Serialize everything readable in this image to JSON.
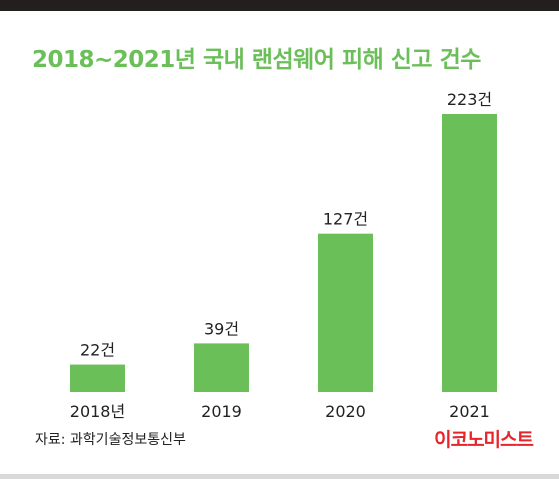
{
  "colors": {
    "accent": "#6bbf59",
    "brand": "#e8242b",
    "top_band": "#231f1e"
  },
  "chart_data": {
    "type": "bar",
    "title": "2018~2021년 국내 랜섬웨어 피해 신고 건수",
    "categories": [
      "2018년",
      "2019",
      "2020",
      "2021"
    ],
    "values": [
      22,
      39,
      127,
      223
    ],
    "data_labels": [
      "22건",
      "39건",
      "127건",
      "223건"
    ],
    "xlabel": "",
    "ylabel": "",
    "ylim": [
      0,
      240
    ],
    "grid": false,
    "legend": "none"
  },
  "source": "자료: 과학기술정보통신부",
  "logo_text": "이코노미스트"
}
